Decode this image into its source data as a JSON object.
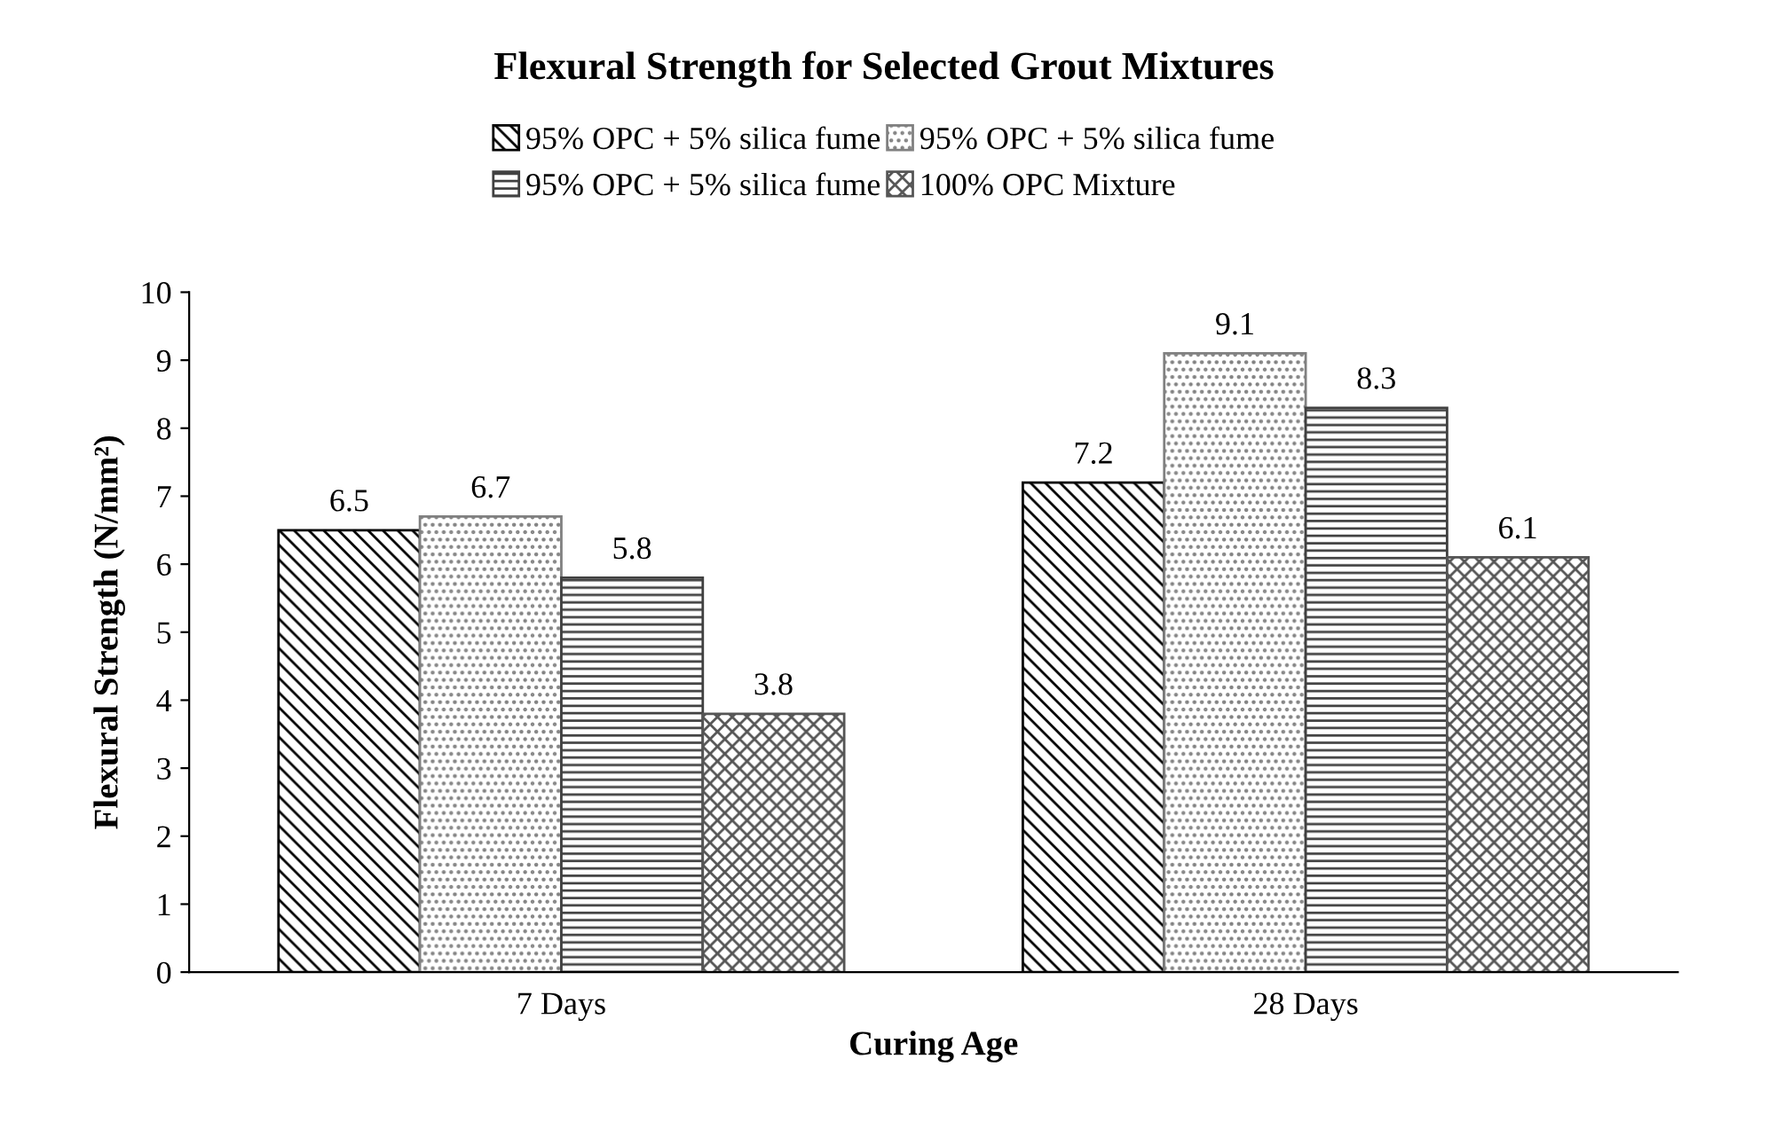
{
  "chart_data": {
    "type": "bar",
    "title": "Flexural Strength for Selected Grout Mixtures",
    "xlabel": "Curing Age",
    "ylabel": "Flexural Strength (N/mm²)",
    "categories": [
      "7 Days",
      "28 Days"
    ],
    "series": [
      {
        "name": "95% OPC + 5% silica fume",
        "color": "#000000",
        "values": [
          6.5,
          7.2
        ]
      },
      {
        "name": "95% OPC + 5% silica fume",
        "color": "#808080",
        "values": [
          6.7,
          9.1
        ]
      },
      {
        "name": "95% OPC + 5% silica fume",
        "color": "#404040",
        "values": [
          5.8,
          8.3
        ]
      },
      {
        "name": "100% OPC Mixture",
        "color": "#555555",
        "values": [
          3.8,
          6.1
        ]
      }
    ],
    "ylim": [
      0,
      10
    ],
    "yticks": [
      0,
      1,
      2,
      3,
      4,
      5,
      6,
      7,
      8,
      9,
      10
    ],
    "grid": false,
    "legend": "top",
    "data_labels": true
  }
}
